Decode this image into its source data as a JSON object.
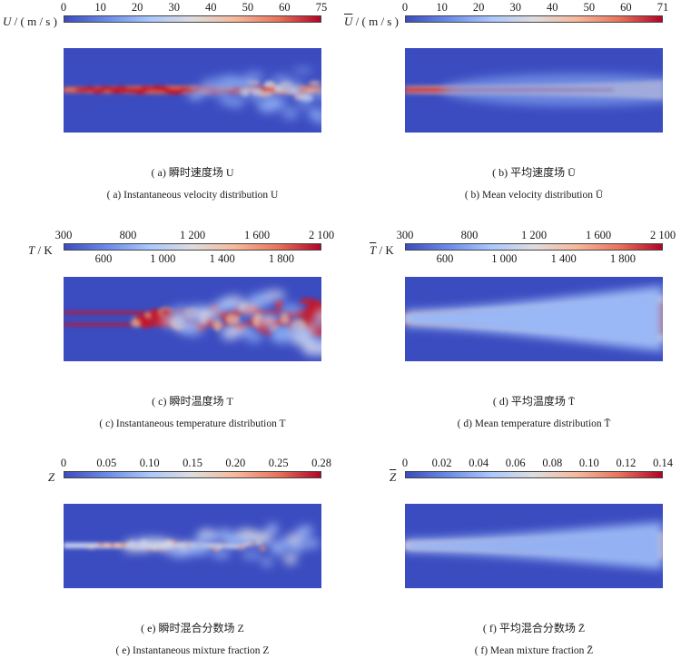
{
  "colormap": {
    "stops": [
      "#3b4cc0",
      "#6a8ce8",
      "#aac7fd",
      "#dddddd",
      "#f7b89c",
      "#e7745b",
      "#b40426"
    ],
    "background": "#3b4cc0"
  },
  "panels": [
    {
      "id": "a",
      "var_label": "U",
      "unit": "/ ( m / s )",
      "overbar": false,
      "ticks_top": [
        "0",
        "10",
        "20",
        "30",
        "40",
        "50",
        "60",
        "75"
      ],
      "ticks_bottom": [],
      "caption_zh": "( a)  瞬时速度场 U",
      "caption_en": "( a)  Instantaneous velocity distribution U"
    },
    {
      "id": "b",
      "var_label": "U",
      "unit": "/ ( m / s )",
      "overbar": true,
      "ticks_top": [
        "0",
        "10",
        "20",
        "30",
        "40",
        "50",
        "60",
        "71"
      ],
      "ticks_bottom": [],
      "caption_zh": "( b)  平均速度场 Ū",
      "caption_en": "( b)  Mean velocity distribution Ū"
    },
    {
      "id": "c",
      "var_label": "T",
      "unit": "/ K",
      "overbar": false,
      "ticks_top": [
        "300",
        "800",
        "1 200",
        "1 600",
        "2 100"
      ],
      "ticks_bottom": [
        "600",
        "1 000",
        "1 400",
        "1 800"
      ],
      "caption_zh": "( c)  瞬时温度场 T",
      "caption_en": "( c)  Instantaneous temperature distribution T"
    },
    {
      "id": "d",
      "var_label": "T",
      "unit": "/ K",
      "overbar": true,
      "ticks_top": [
        "300",
        "800",
        "1 200",
        "1 600",
        "2 100"
      ],
      "ticks_bottom": [
        "600",
        "1 000",
        "1 400",
        "1 800"
      ],
      "caption_zh": "( d)  平均温度场 T̄",
      "caption_en": "( d)  Mean temperature distribution T̄"
    },
    {
      "id": "e",
      "var_label": "Z",
      "unit": "",
      "overbar": false,
      "ticks_top": [
        "0",
        "0.05",
        "0.10",
        "0.15",
        "0.20",
        "0.25",
        "0.28"
      ],
      "ticks_bottom": [],
      "caption_zh": "( e)  瞬时混合分数场 Z",
      "caption_en": "( e)  Instantaneous mixture fraction Z"
    },
    {
      "id": "f",
      "var_label": "Z",
      "unit": "",
      "overbar": true,
      "ticks_top": [
        "0",
        "0.02",
        "0.04",
        "0.06",
        "0.08",
        "0.10",
        "0.12",
        "0.14"
      ],
      "ticks_bottom": [],
      "caption_zh": "( f)  平均混合分数场 Z̄",
      "caption_en": "( f)  Mean mixture fraction Z̄"
    }
  ]
}
